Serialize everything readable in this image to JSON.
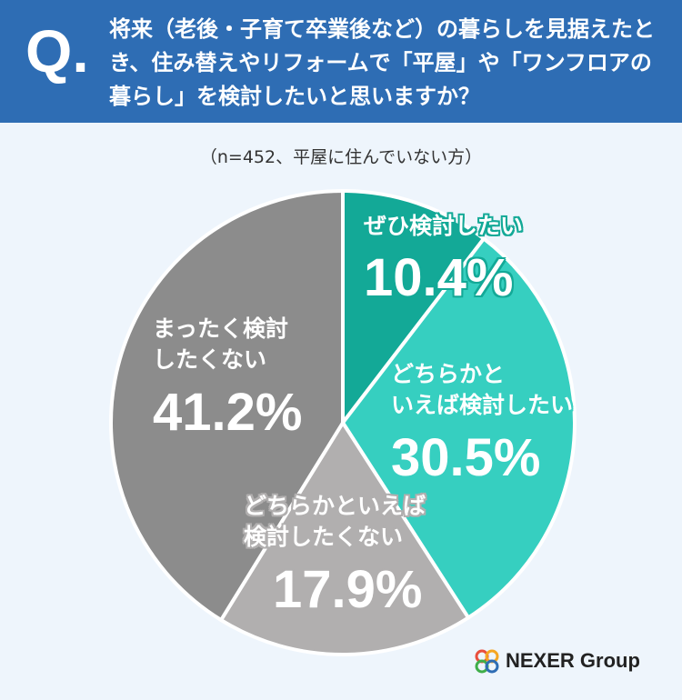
{
  "chart_data": {
    "type": "pie",
    "q_label": "Q.",
    "title": "将来（老後・子育て卒業後など）の暮らしを見据えたとき、住み替えやリフォームで「平屋」や「ワンフロアの暮らし」を検討したいと思いますか？",
    "subtitle": "（n=452、平屋に住んでいない方）",
    "categories": [
      "ぜひ検討したい",
      "どちらかと\nいえば検討したい",
      "どちらかといえば\n検討したくない",
      "まったく検討\nしたくない"
    ],
    "values": [
      10.4,
      30.5,
      17.9,
      41.2
    ],
    "value_labels": [
      "10.4%",
      "30.5%",
      "17.9%",
      "41.2%"
    ],
    "colors": [
      "#13a997",
      "#36cfc0",
      "#b1afaf",
      "#8c8c8c"
    ],
    "logo": "NEXER Group"
  }
}
